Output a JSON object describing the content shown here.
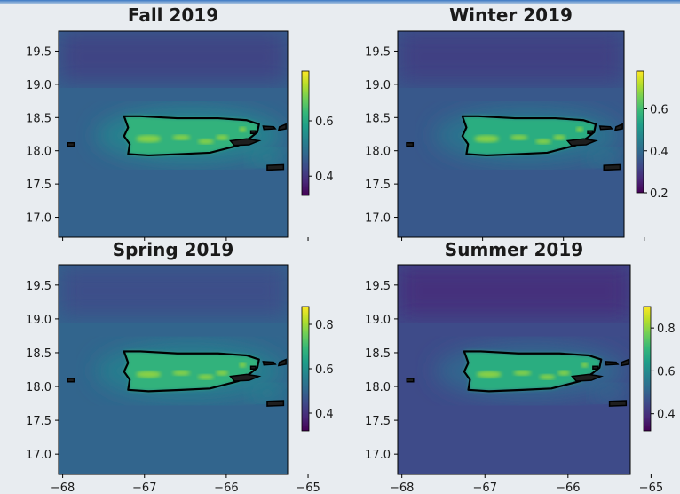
{
  "chart_data": [
    {
      "type": "heatmap",
      "title": "Fall 2019",
      "xlim": [
        -68.05,
        -65.25
      ],
      "ylim": [
        16.7,
        19.8
      ],
      "xticks": [
        -68,
        -67,
        -66,
        -65
      ],
      "yticks": [
        17.0,
        17.5,
        18.0,
        18.5,
        19.0,
        19.5
      ],
      "ytick_labels": [
        "17.0",
        "17.5",
        "18.0",
        "18.5",
        "19.0",
        "19.5"
      ],
      "show_xtick_labels": false,
      "colorbar": {
        "range": [
          0.33,
          0.78
        ],
        "ticks": [
          0.4,
          0.6
        ],
        "tick_labels": [
          "0.4",
          "0.6"
        ]
      },
      "colormap": [
        "#440154",
        "#482878",
        "#3e4a89",
        "#31688e",
        "#26828e",
        "#1f9e89",
        "#35b779",
        "#6ece58",
        "#b5de2b",
        "#fde725"
      ],
      "background_value": 0.47,
      "land_value": 0.62
    },
    {
      "type": "heatmap",
      "title": "Winter 2019",
      "xlim": [
        -68.05,
        -65.25
      ],
      "ylim": [
        16.7,
        19.8
      ],
      "xticks": [
        -68,
        -67,
        -66,
        -65
      ],
      "yticks": [
        17.0,
        17.5,
        18.0,
        18.5,
        19.0,
        19.5
      ],
      "ytick_labels": [
        "17.0",
        "17.5",
        "18.0",
        "18.5",
        "19.0",
        "19.5"
      ],
      "show_xtick_labels": false,
      "colorbar": {
        "range": [
          0.2,
          0.78
        ],
        "ticks": [
          0.2,
          0.4,
          0.6
        ],
        "tick_labels": [
          "0.2",
          "0.4",
          "0.6"
        ]
      },
      "colormap": [
        "#440154",
        "#482878",
        "#3e4a89",
        "#31688e",
        "#26828e",
        "#1f9e89",
        "#35b779",
        "#6ece58",
        "#b5de2b",
        "#fde725"
      ],
      "background_value": 0.36,
      "land_value": 0.56
    },
    {
      "type": "heatmap",
      "title": "Spring 2019",
      "xlim": [
        -68.05,
        -65.25
      ],
      "ylim": [
        16.7,
        19.8
      ],
      "xticks": [
        -68,
        -67,
        -66,
        -65
      ],
      "xtick_labels": [
        "−68",
        "−67",
        "−66",
        "−65"
      ],
      "yticks": [
        17.0,
        17.5,
        18.0,
        18.5,
        19.0,
        19.5
      ],
      "ytick_labels": [
        "17.0",
        "17.5",
        "18.0",
        "18.5",
        "19.0",
        "19.5"
      ],
      "show_xtick_labels": true,
      "colorbar": {
        "range": [
          0.32,
          0.88
        ],
        "ticks": [
          0.4,
          0.6,
          0.8
        ],
        "tick_labels": [
          "0.4",
          "0.6",
          "0.8"
        ]
      },
      "colormap": [
        "#440154",
        "#482878",
        "#3e4a89",
        "#31688e",
        "#26828e",
        "#1f9e89",
        "#35b779",
        "#6ece58",
        "#b5de2b",
        "#fde725"
      ],
      "background_value": 0.5,
      "land_value": 0.68
    },
    {
      "type": "heatmap",
      "title": "Summer 2019",
      "xlim": [
        -68.05,
        -65.25
      ],
      "ylim": [
        16.7,
        19.8
      ],
      "xticks": [
        -68,
        -67,
        -66,
        -65
      ],
      "xtick_labels": [
        "−68",
        "−67",
        "−66",
        "−65"
      ],
      "yticks": [
        17.0,
        17.5,
        18.0,
        18.5,
        19.0,
        19.5
      ],
      "ytick_labels": [
        "17.0",
        "17.5",
        "18.0",
        "18.5",
        "19.0",
        "19.5"
      ],
      "show_xtick_labels": true,
      "colorbar": {
        "range": [
          0.32,
          0.9
        ],
        "ticks": [
          0.4,
          0.6,
          0.8
        ],
        "tick_labels": [
          "0.4",
          "0.6",
          "0.8"
        ]
      },
      "colormap": [
        "#440154",
        "#482878",
        "#3e4a89",
        "#31688e",
        "#26828e",
        "#1f9e89",
        "#35b779",
        "#6ece58",
        "#b5de2b",
        "#fde725"
      ],
      "background_value": 0.45,
      "land_value": 0.68
    }
  ]
}
